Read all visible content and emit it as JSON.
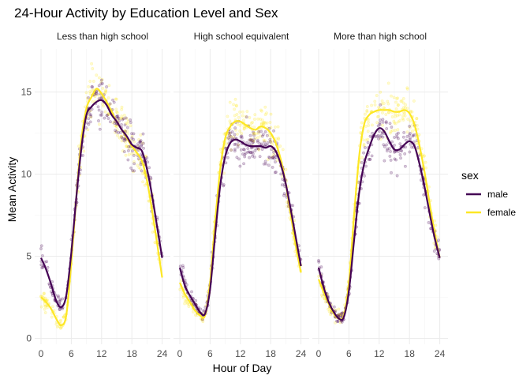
{
  "chart_data": {
    "type": "scatter",
    "title": "24-Hour Activity by Education Level and Sex",
    "xlabel": "Hour of Day",
    "ylabel": "Mean Activity",
    "xlim": [
      0,
      24
    ],
    "ylim": [
      0,
      17
    ],
    "x_ticks": [
      0,
      6,
      12,
      18,
      24
    ],
    "y_ticks": [
      0,
      5,
      10,
      15
    ],
    "grid": true,
    "legend": {
      "title": "sex",
      "position": "right",
      "entries": [
        {
          "name": "male",
          "color": "#440154"
        },
        {
          "name": "female",
          "color": "#FDE725"
        }
      ]
    },
    "panels": [
      {
        "name": "Less than high school",
        "series": [
          {
            "name": "male",
            "color": "#440154",
            "x": [
              0,
              1,
              2,
              3,
              4,
              5,
              6,
              7,
              8,
              9,
              10,
              11,
              12,
              13,
              14,
              15,
              16,
              17,
              18,
              19,
              20,
              21,
              22,
              23,
              24
            ],
            "y": [
              4.9,
              4.2,
              3.3,
              2.3,
              1.9,
              2.6,
              5.2,
              8.6,
              11.6,
              13.6,
              14.1,
              14.4,
              14.5,
              14.2,
              13.6,
              13.2,
              12.7,
              12.3,
              11.8,
              11.6,
              11.4,
              10.3,
              8.7,
              6.8,
              4.9
            ]
          },
          {
            "name": "female",
            "color": "#FDE725",
            "x": [
              0,
              1,
              2,
              3,
              4,
              5,
              6,
              7,
              8,
              9,
              10,
              11,
              12,
              13,
              14,
              15,
              16,
              17,
              18,
              19,
              20,
              21,
              22,
              23,
              24
            ],
            "y": [
              2.5,
              2.2,
              1.8,
              1.2,
              0.8,
              1.4,
              4.6,
              8.6,
              12.1,
              14.0,
              14.7,
              15.2,
              14.9,
              14.4,
              13.8,
              13.2,
              12.7,
              12.2,
              11.7,
              11.3,
              10.8,
              9.6,
              7.8,
              5.8,
              3.7
            ]
          }
        ]
      },
      {
        "name": "High school equivalent",
        "series": [
          {
            "name": "male",
            "color": "#440154",
            "x": [
              0,
              1,
              2,
              3,
              4,
              5,
              6,
              7,
              8,
              9,
              10,
              11,
              12,
              13,
              14,
              15,
              16,
              17,
              18,
              19,
              20,
              21,
              22,
              23,
              24
            ],
            "y": [
              4.3,
              3.2,
              2.6,
              2.1,
              1.6,
              1.5,
              3.0,
              6.3,
              9.3,
              11.1,
              11.9,
              12.1,
              12.0,
              11.8,
              11.7,
              11.7,
              11.7,
              11.6,
              11.7,
              11.4,
              10.6,
              9.4,
              7.8,
              6.1,
              4.4
            ]
          },
          {
            "name": "female",
            "color": "#FDE725",
            "x": [
              0,
              1,
              2,
              3,
              4,
              5,
              6,
              7,
              8,
              9,
              10,
              11,
              12,
              13,
              14,
              15,
              16,
              17,
              18,
              19,
              20,
              21,
              22,
              23,
              24
            ],
            "y": [
              3.4,
              2.7,
              2.2,
              1.7,
              1.4,
              1.4,
              3.4,
              7.1,
              10.3,
              12.2,
              12.9,
              13.2,
              13.2,
              13.0,
              12.8,
              12.7,
              12.9,
              12.8,
              12.5,
              11.9,
              10.9,
              9.4,
              7.5,
              5.6,
              4.0
            ]
          }
        ]
      },
      {
        "name": "More than high school",
        "series": [
          {
            "name": "male",
            "color": "#440154",
            "x": [
              0,
              1,
              2,
              3,
              4,
              5,
              6,
              7,
              8,
              9,
              10,
              11,
              12,
              13,
              14,
              15,
              16,
              17,
              18,
              19,
              20,
              21,
              22,
              23,
              24
            ],
            "y": [
              4.3,
              3.1,
              2.2,
              1.6,
              1.2,
              1.3,
              2.9,
              5.9,
              8.8,
              10.6,
              11.6,
              12.4,
              12.8,
              12.6,
              12.0,
              11.5,
              11.5,
              11.8,
              12.0,
              11.7,
              10.6,
              9.2,
              7.6,
              6.1,
              4.9
            ]
          },
          {
            "name": "female",
            "color": "#FDE725",
            "x": [
              0,
              1,
              2,
              3,
              4,
              5,
              6,
              7,
              8,
              9,
              10,
              11,
              12,
              13,
              14,
              15,
              16,
              17,
              18,
              19,
              20,
              21,
              22,
              23,
              24
            ],
            "y": [
              3.6,
              2.8,
              2.1,
              1.5,
              1.2,
              1.4,
              3.4,
              7.4,
              11.0,
              13.0,
              13.6,
              13.8,
              13.9,
              13.9,
              13.9,
              13.8,
              13.8,
              13.9,
              13.7,
              13.0,
              11.7,
              10.1,
              8.2,
              6.4,
              4.9
            ]
          }
        ]
      }
    ]
  }
}
